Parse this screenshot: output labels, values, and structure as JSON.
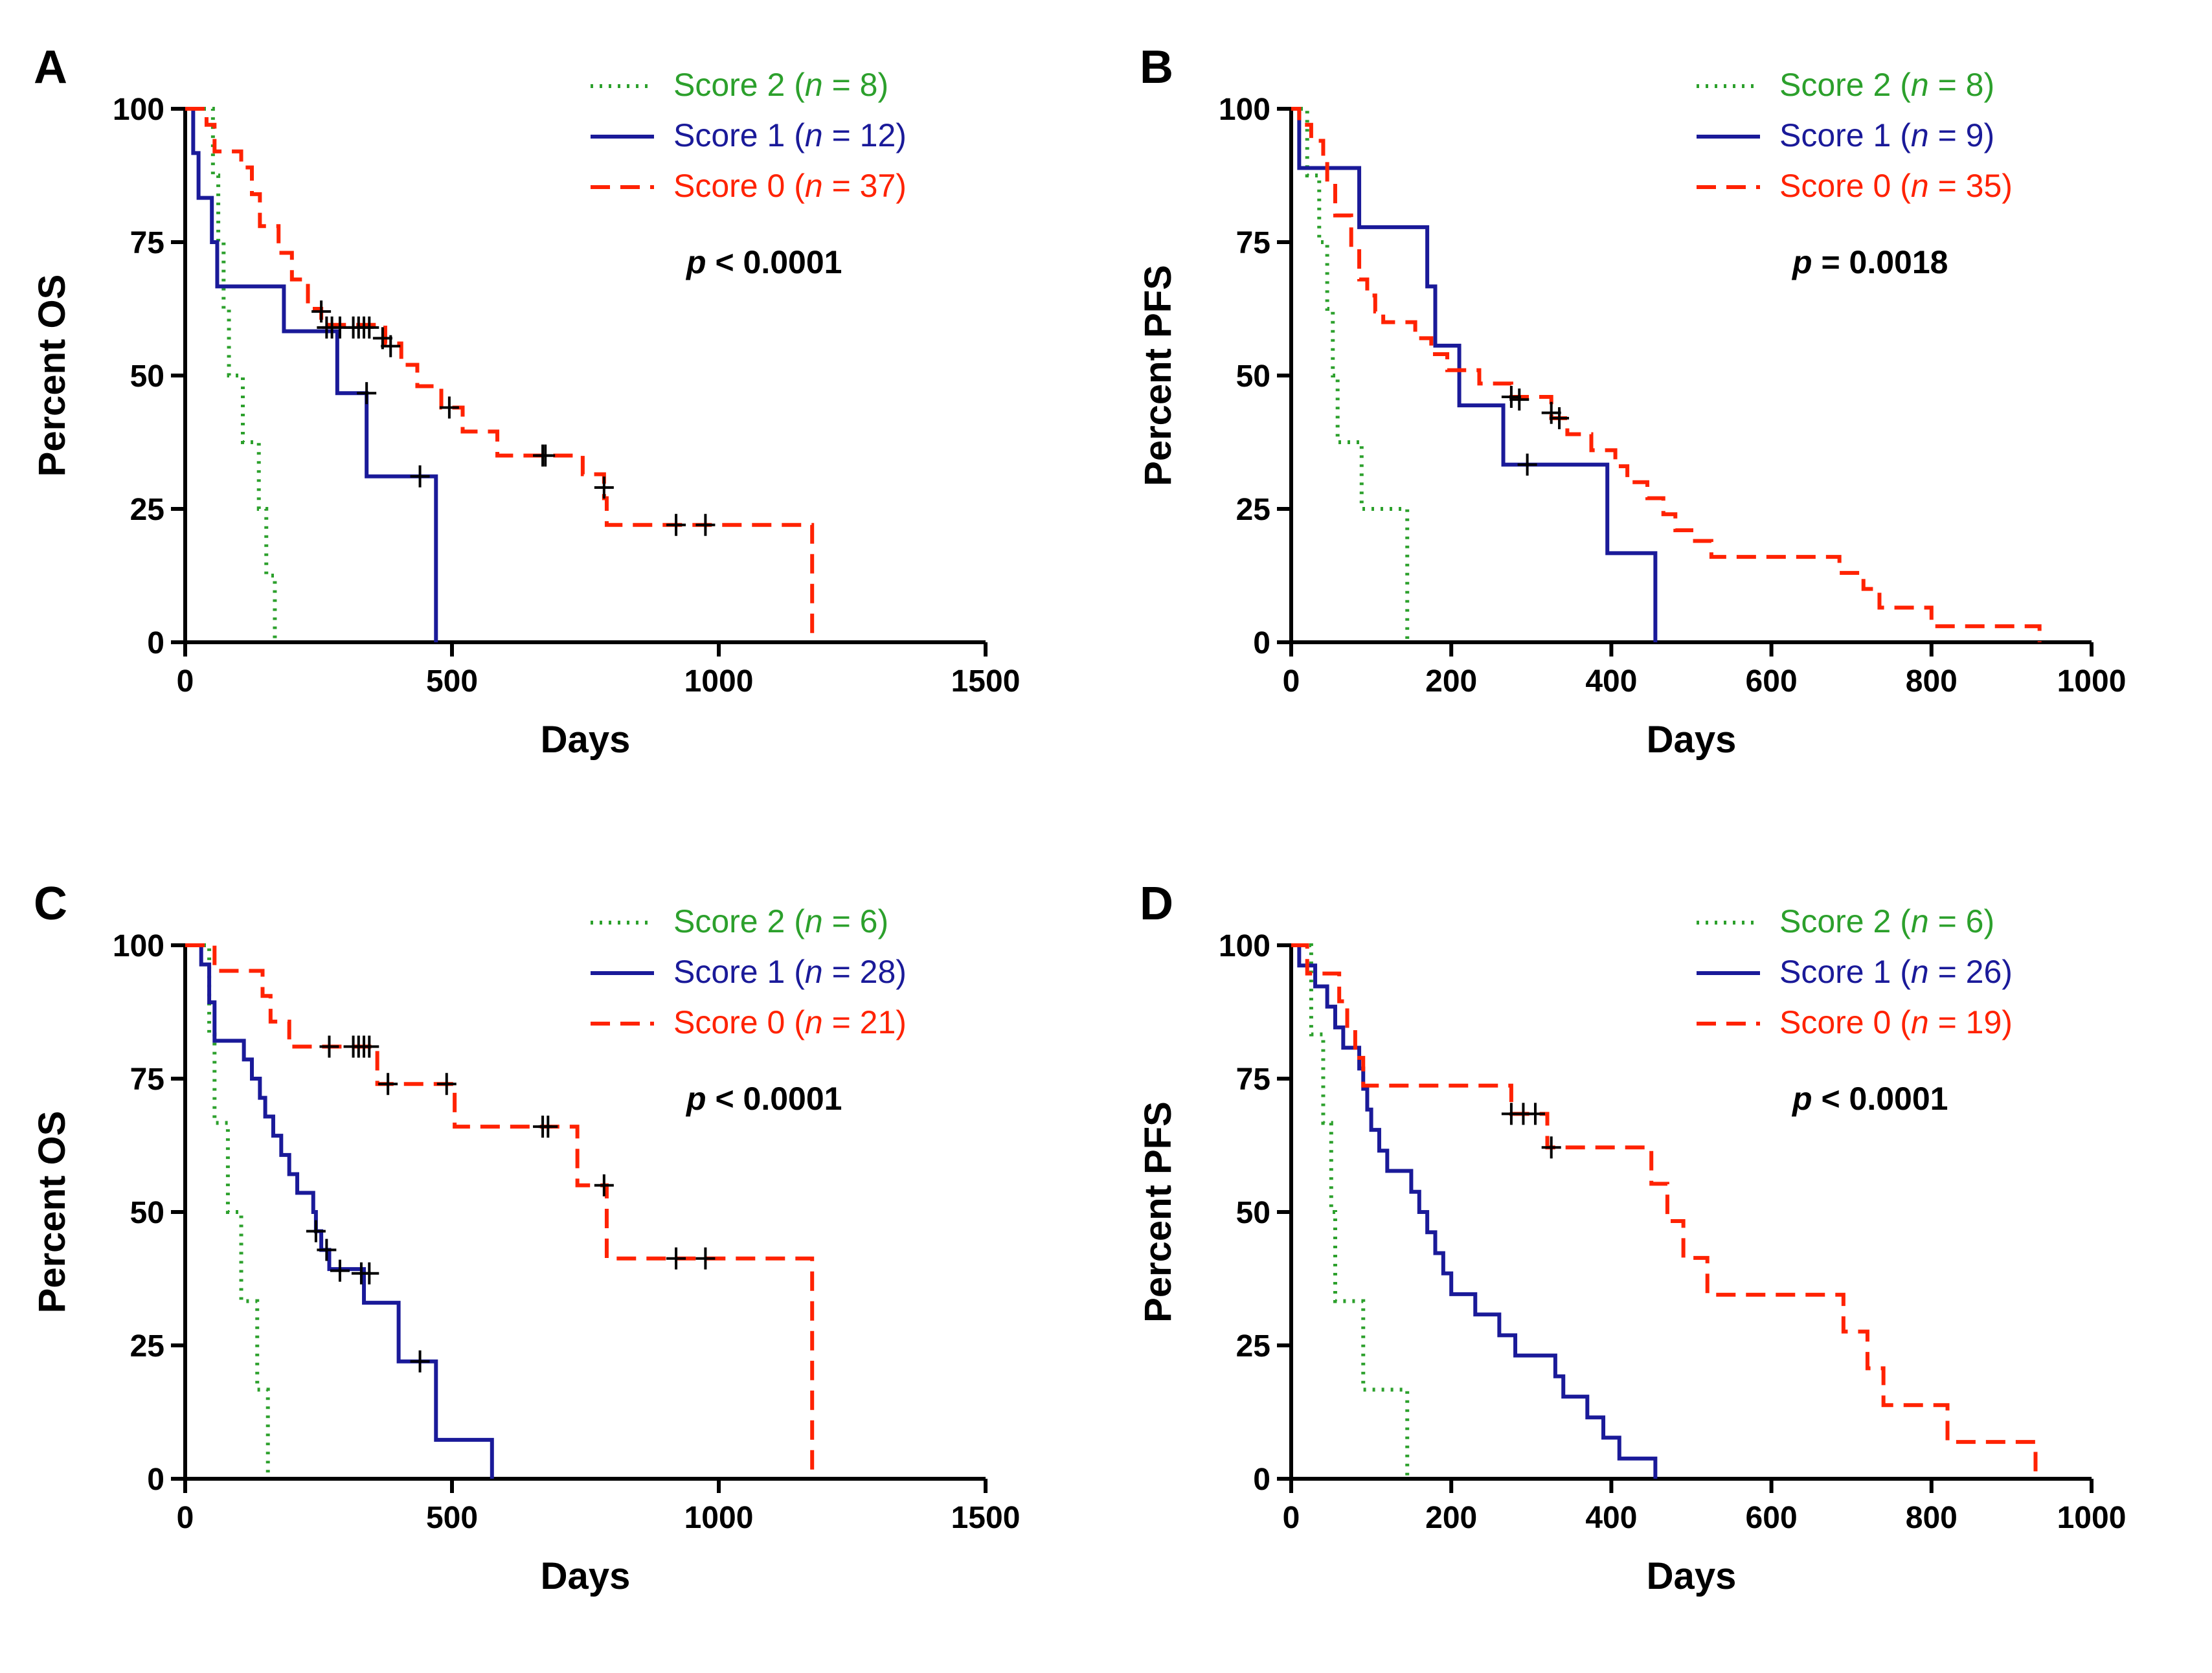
{
  "chart_data": [
    {
      "panel": "A",
      "type": "line",
      "subtype": "kaplan-meier",
      "xlabel": "Days",
      "ylabel": "Percent OS",
      "xlim": [
        0,
        1500
      ],
      "ylim": [
        0,
        100
      ],
      "xticks": [
        0,
        500,
        1000,
        1500
      ],
      "yticks": [
        0,
        25,
        50,
        75,
        100
      ],
      "p_prefix": "p",
      "p_value": " < 0.0001",
      "legend_position": "top-right",
      "series": [
        {
          "name": "Score 2",
          "label_pre": "Score 2 (",
          "label_n": "n",
          "label_post": " = 8)",
          "color": "#2ca02c",
          "style": "dotted",
          "steps": [
            [
              0,
              100
            ],
            [
              50,
              100
            ],
            [
              52,
              87.5
            ],
            [
              62,
              75
            ],
            [
              72,
              62.5
            ],
            [
              82,
              50
            ],
            [
              108,
              37.5
            ],
            [
              138,
              25
            ],
            [
              152,
              12.5
            ],
            [
              168,
              0
            ]
          ],
          "censored": []
        },
        {
          "name": "Score 1",
          "label_pre": "Score 1 (",
          "label_n": "n",
          "label_post": " = 12)",
          "color": "#1a1a99",
          "style": "solid",
          "steps": [
            [
              0,
              100
            ],
            [
              15,
              91.7
            ],
            [
              25,
              83.3
            ],
            [
              50,
              75
            ],
            [
              60,
              66.7
            ],
            [
              185,
              58.3
            ],
            [
              285,
              46.7
            ],
            [
              340,
              31.1
            ],
            [
              470,
              0
            ]
          ],
          "censored": [
            [
              340,
              46.7
            ],
            [
              440,
              31.1
            ]
          ]
        },
        {
          "name": "Score 0",
          "label_pre": "Score 0 (",
          "label_n": "n",
          "label_post": " = 37)",
          "color": "#ff2200",
          "style": "dashed",
          "steps": [
            [
              0,
              100
            ],
            [
              40,
              97
            ],
            [
              55,
              92
            ],
            [
              105,
              89
            ],
            [
              125,
              84
            ],
            [
              140,
              78
            ],
            [
              175,
              73
            ],
            [
              200,
              68
            ],
            [
              230,
              62.5
            ],
            [
              255,
              59.5
            ],
            [
              375,
              56
            ],
            [
              405,
              52
            ],
            [
              435,
              48
            ],
            [
              480,
              44
            ],
            [
              520,
              39.5
            ],
            [
              585,
              35
            ],
            [
              745,
              31.5
            ],
            [
              785,
              27
            ],
            [
              790,
              22
            ],
            [
              1175,
              0
            ]
          ],
          "censored": [
            [
              255,
              62
            ],
            [
              265,
              59
            ],
            [
              275,
              59
            ],
            [
              290,
              59
            ],
            [
              315,
              59
            ],
            [
              325,
              59
            ],
            [
              335,
              59
            ],
            [
              345,
              59
            ],
            [
              370,
              57
            ],
            [
              385,
              55.5
            ],
            [
              495,
              44
            ],
            [
              670,
              35
            ],
            [
              675,
              35
            ],
            [
              785,
              29
            ],
            [
              920,
              22
            ],
            [
              975,
              22
            ]
          ]
        }
      ]
    },
    {
      "panel": "B",
      "type": "line",
      "subtype": "kaplan-meier",
      "xlabel": "Days",
      "ylabel": "Percent PFS",
      "xlim": [
        0,
        1000
      ],
      "ylim": [
        0,
        100
      ],
      "xticks": [
        0,
        200,
        400,
        600,
        800,
        1000
      ],
      "yticks": [
        0,
        25,
        50,
        75,
        100
      ],
      "p_prefix": "p",
      "p_value": " = 0.0018",
      "legend_position": "top-right",
      "series": [
        {
          "name": "Score 2",
          "label_pre": "Score 2 (",
          "label_n": "n",
          "label_post": " = 8)",
          "color": "#2ca02c",
          "style": "dotted",
          "steps": [
            [
              0,
              100
            ],
            [
              20,
              87.5
            ],
            [
              35,
              75
            ],
            [
              45,
              62.5
            ],
            [
              52,
              50
            ],
            [
              58,
              37.5
            ],
            [
              88,
              25
            ],
            [
              145,
              0
            ]
          ],
          "censored": []
        },
        {
          "name": "Score 1",
          "label_pre": "Score 1 (",
          "label_n": "n",
          "label_post": " = 9)",
          "color": "#1a1a99",
          "style": "solid",
          "steps": [
            [
              0,
              100
            ],
            [
              10,
              88.9
            ],
            [
              85,
              77.8
            ],
            [
              170,
              66.7
            ],
            [
              180,
              55.6
            ],
            [
              210,
              44.4
            ],
            [
              265,
              33.3
            ],
            [
              395,
              16.7
            ],
            [
              455,
              0
            ]
          ],
          "censored": [
            [
              295,
              33.3
            ]
          ]
        },
        {
          "name": "Score 0",
          "label_pre": "Score 0 (",
          "label_n": "n",
          "label_post": " = 35)",
          "color": "#ff2200",
          "style": "dashed",
          "steps": [
            [
              0,
              100
            ],
            [
              10,
              97
            ],
            [
              25,
              94
            ],
            [
              40,
              91
            ],
            [
              45,
              86
            ],
            [
              55,
              80
            ],
            [
              75,
              74
            ],
            [
              85,
              68
            ],
            [
              95,
              65
            ],
            [
              105,
              62
            ],
            [
              115,
              60
            ],
            [
              155,
              57
            ],
            [
              175,
              54
            ],
            [
              195,
              51
            ],
            [
              235,
              48.5
            ],
            [
              275,
              46
            ],
            [
              325,
              42
            ],
            [
              345,
              39
            ],
            [
              375,
              36
            ],
            [
              405,
              33
            ],
            [
              420,
              30
            ],
            [
              445,
              27
            ],
            [
              465,
              24
            ],
            [
              480,
              21
            ],
            [
              500,
              19
            ],
            [
              525,
              16
            ],
            [
              685,
              13
            ],
            [
              715,
              10
            ],
            [
              735,
              6.5
            ],
            [
              800,
              3
            ],
            [
              935,
              0
            ]
          ],
          "censored": [
            [
              275,
              46
            ],
            [
              285,
              45.5
            ],
            [
              325,
              43
            ],
            [
              335,
              42
            ]
          ]
        }
      ]
    },
    {
      "panel": "C",
      "type": "line",
      "subtype": "kaplan-meier",
      "xlabel": "Days",
      "ylabel": "Percent OS",
      "xlim": [
        0,
        1500
      ],
      "ylim": [
        0,
        100
      ],
      "xticks": [
        0,
        500,
        1000,
        1500
      ],
      "yticks": [
        0,
        25,
        50,
        75,
        100
      ],
      "p_prefix": "p",
      "p_value": " < 0.0001",
      "legend_position": "top-right",
      "series": [
        {
          "name": "Score 2",
          "label_pre": "Score 2 (",
          "label_n": "n",
          "label_post": " = 6)",
          "color": "#2ca02c",
          "style": "dotted",
          "steps": [
            [
              0,
              100
            ],
            [
              45,
              83.3
            ],
            [
              55,
              66.7
            ],
            [
              80,
              50
            ],
            [
              105,
              33.3
            ],
            [
              135,
              16.7
            ],
            [
              155,
              0
            ]
          ],
          "censored": []
        },
        {
          "name": "Score 1",
          "label_pre": "Score 1 (",
          "label_n": "n",
          "label_post": " = 28)",
          "color": "#1a1a99",
          "style": "solid",
          "steps": [
            [
              0,
              100
            ],
            [
              30,
              96.4
            ],
            [
              45,
              89.3
            ],
            [
              55,
              82.1
            ],
            [
              110,
              78.6
            ],
            [
              125,
              75
            ],
            [
              140,
              71.4
            ],
            [
              150,
              67.9
            ],
            [
              165,
              64.3
            ],
            [
              180,
              60.7
            ],
            [
              195,
              57.1
            ],
            [
              210,
              53.6
            ],
            [
              240,
              50
            ],
            [
              245,
              46.4
            ],
            [
              255,
              42.9
            ],
            [
              270,
              39.3
            ],
            [
              335,
              33
            ],
            [
              400,
              22
            ],
            [
              470,
              7.3
            ],
            [
              575,
              0
            ]
          ],
          "censored": [
            [
              245,
              46.4
            ],
            [
              265,
              42.9
            ],
            [
              290,
              39
            ],
            [
              330,
              38.5
            ],
            [
              345,
              38.5
            ],
            [
              440,
              22
            ]
          ]
        },
        {
          "name": "Score 0",
          "label_pre": "Score 0 (",
          "label_n": "n",
          "label_post": " = 21)",
          "color": "#ff2200",
          "style": "dashed",
          "steps": [
            [
              0,
              100
            ],
            [
              55,
              95.2
            ],
            [
              145,
              90.5
            ],
            [
              160,
              85.7
            ],
            [
              195,
              81
            ],
            [
              360,
              74
            ],
            [
              505,
              66
            ],
            [
              735,
              55
            ],
            [
              790,
              41.3
            ],
            [
              1175,
              0
            ]
          ],
          "censored": [
            [
              270,
              81
            ],
            [
              315,
              81
            ],
            [
              325,
              81
            ],
            [
              335,
              81
            ],
            [
              345,
              81
            ],
            [
              380,
              74
            ],
            [
              490,
              74
            ],
            [
              670,
              66
            ],
            [
              680,
              66
            ],
            [
              785,
              55
            ],
            [
              920,
              41.3
            ],
            [
              975,
              41.3
            ]
          ]
        }
      ]
    },
    {
      "panel": "D",
      "type": "line",
      "subtype": "kaplan-meier",
      "xlabel": "Days",
      "ylabel": "Percent PFS",
      "xlim": [
        0,
        1000
      ],
      "ylim": [
        0,
        100
      ],
      "xticks": [
        0,
        200,
        400,
        600,
        800,
        1000
      ],
      "yticks": [
        0,
        25,
        50,
        75,
        100
      ],
      "p_prefix": "p",
      "p_value": " < 0.0001",
      "legend_position": "top-right",
      "series": [
        {
          "name": "Score 2",
          "label_pre": "Score 2 (",
          "label_n": "n",
          "label_post": " = 6)",
          "color": "#2ca02c",
          "style": "dotted",
          "steps": [
            [
              0,
              100
            ],
            [
              25,
              83.3
            ],
            [
              40,
              66.7
            ],
            [
              50,
              50
            ],
            [
              55,
              33.3
            ],
            [
              90,
              16.7
            ],
            [
              145,
              0
            ]
          ],
          "censored": []
        },
        {
          "name": "Score 1",
          "label_pre": "Score 1 (",
          "label_n": "n",
          "label_post": " = 26)",
          "color": "#1a1a99",
          "style": "solid",
          "steps": [
            [
              0,
              100
            ],
            [
              10,
              96.2
            ],
            [
              30,
              92.3
            ],
            [
              45,
              88.5
            ],
            [
              55,
              84.6
            ],
            [
              65,
              80.8
            ],
            [
              85,
              76.9
            ],
            [
              90,
              73.1
            ],
            [
              95,
              69.2
            ],
            [
              100,
              65.4
            ],
            [
              110,
              61.5
            ],
            [
              120,
              57.7
            ],
            [
              150,
              53.8
            ],
            [
              160,
              50
            ],
            [
              170,
              46.2
            ],
            [
              180,
              42.3
            ],
            [
              190,
              38.5
            ],
            [
              200,
              34.6
            ],
            [
              230,
              30.8
            ],
            [
              260,
              26.9
            ],
            [
              280,
              23.1
            ],
            [
              330,
              19.2
            ],
            [
              340,
              15.4
            ],
            [
              370,
              11.5
            ],
            [
              390,
              7.7
            ],
            [
              410,
              3.8
            ],
            [
              455,
              0
            ]
          ],
          "censored": []
        },
        {
          "name": "Score 0",
          "label_pre": "Score 0 (",
          "label_n": "n",
          "label_post": " = 19)",
          "color": "#ff2200",
          "style": "dashed",
          "steps": [
            [
              0,
              100
            ],
            [
              20,
              94.7
            ],
            [
              60,
              89.5
            ],
            [
              70,
              84.2
            ],
            [
              80,
              78.9
            ],
            [
              90,
              73.7
            ],
            [
              275,
              68.4
            ],
            [
              320,
              62.1
            ],
            [
              450,
              55.3
            ],
            [
              470,
              48.3
            ],
            [
              490,
              41.4
            ],
            [
              520,
              34.5
            ],
            [
              690,
              27.6
            ],
            [
              720,
              20.7
            ],
            [
              740,
              13.8
            ],
            [
              820,
              6.9
            ],
            [
              930,
              0
            ]
          ],
          "censored": [
            [
              275,
              68.4
            ],
            [
              290,
              68.4
            ],
            [
              305,
              68.4
            ],
            [
              325,
              62.1
            ]
          ]
        }
      ]
    }
  ]
}
